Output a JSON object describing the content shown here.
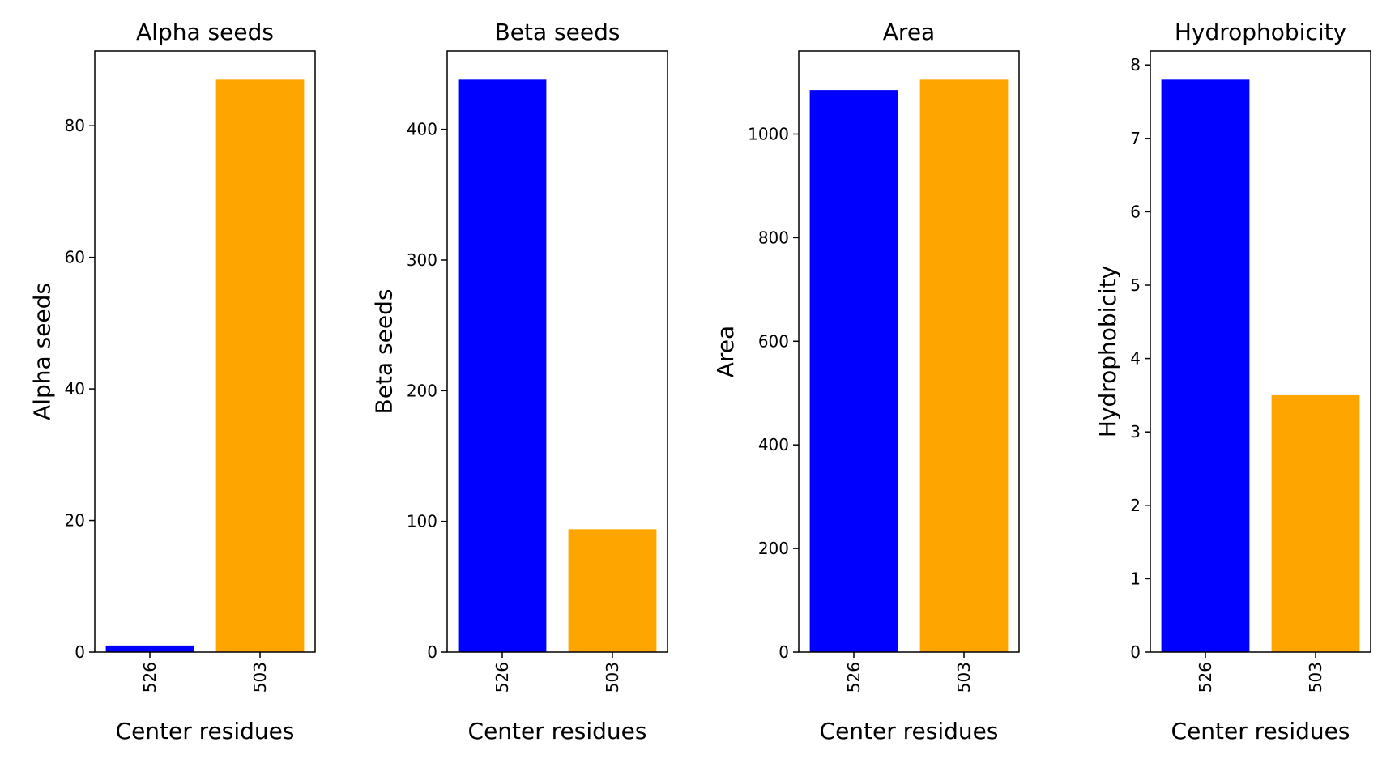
{
  "chart_data": [
    {
      "type": "bar",
      "title": "Alpha seeds",
      "xlabel": "Center residues",
      "ylabel": "Alpha seeds",
      "categories": [
        "526",
        "503"
      ],
      "values": [
        1,
        87
      ],
      "colors": [
        "#0000ff",
        "#ffa500"
      ],
      "ylim": [
        0,
        91.35
      ],
      "yticks": [
        0,
        20,
        40,
        60,
        80
      ],
      "grid": false,
      "legend": "none"
    },
    {
      "type": "bar",
      "title": "Beta seeds",
      "xlabel": "Center residues",
      "ylabel": "Beta seeds",
      "categories": [
        "526",
        "503"
      ],
      "values": [
        438,
        94
      ],
      "colors": [
        "#0000ff",
        "#ffa500"
      ],
      "ylim": [
        0,
        459.9
      ],
      "yticks": [
        0,
        100,
        200,
        300,
        400
      ],
      "grid": false,
      "legend": "none"
    },
    {
      "type": "bar",
      "title": "Area",
      "xlabel": "Center residues",
      "ylabel": "Area",
      "categories": [
        "526",
        "503"
      ],
      "values": [
        1085,
        1105
      ],
      "colors": [
        "#0000ff",
        "#ffa500"
      ],
      "ylim": [
        0,
        1160.25
      ],
      "yticks": [
        0,
        200,
        400,
        600,
        800,
        1000
      ],
      "grid": false,
      "legend": "none"
    },
    {
      "type": "bar",
      "title": "Hydrophobicity",
      "xlabel": "Center residues",
      "ylabel": "Hydrophobicity",
      "categories": [
        "526",
        "503"
      ],
      "values": [
        7.8,
        3.5
      ],
      "colors": [
        "#0000ff",
        "#ffa500"
      ],
      "ylim": [
        0,
        8.19
      ],
      "yticks": [
        0,
        1,
        2,
        3,
        4,
        5,
        6,
        7,
        8
      ],
      "grid": false,
      "legend": "none"
    }
  ]
}
